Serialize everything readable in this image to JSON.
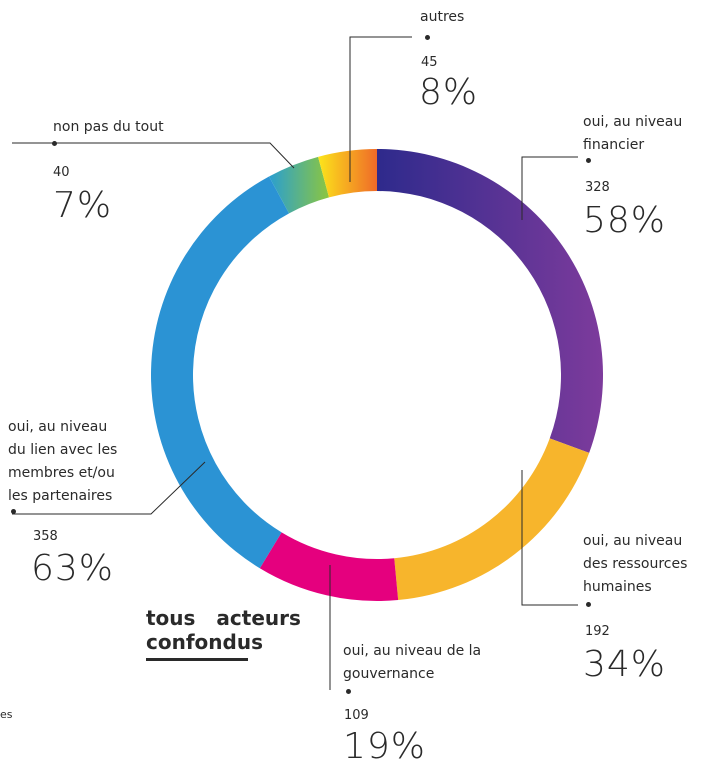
{
  "chart_data": {
    "type": "donut",
    "segments": [
      {
        "label": "oui, au niveau financier",
        "count": "328",
        "percent": "58%",
        "value": 328,
        "color_start": "#2e2a8c",
        "color_end": "#7d3b9c"
      },
      {
        "label": "oui, au niveau des ressources humaines",
        "count": "192",
        "percent": "34%",
        "value": 192,
        "color_start": "#f7b52c",
        "color_end": "#f7b52c"
      },
      {
        "label": "oui, au niveau de la gouvernance",
        "count": "109",
        "percent": "19%",
        "value": 109,
        "color_start": "#e5007e",
        "color_end": "#e5007e"
      },
      {
        "label": "oui, au niveau du lien avec les membres et/ou les partenaires",
        "count": "358",
        "percent": "63%",
        "value": 358,
        "color_start": "#2b93d4",
        "color_end": "#2b93d4"
      },
      {
        "label": "non pas du tout",
        "count": "40",
        "percent": "7%",
        "value": 40,
        "color_start": "#2a9fd0",
        "color_end": "#8cc63f"
      },
      {
        "label": "autres",
        "count": "45",
        "percent": "8%",
        "value": 45,
        "color_start": "#fce51b",
        "color_end": "#ef6a28"
      }
    ],
    "title": "tous acteurs confondus"
  },
  "labels": {
    "financier": {
      "line1": "oui, au niveau",
      "line2": "financier"
    },
    "rh": {
      "line1": "oui, au niveau",
      "line2": "des ressources",
      "line3": "humaines"
    },
    "gouvernance": {
      "line1": "oui, au niveau de la",
      "line2": "gouvernance"
    },
    "lien": {
      "line1": "oui, au niveau",
      "line2": "du lien avec les",
      "line3": "membres et/ou",
      "line4": "les partenaires"
    },
    "non": {
      "line1": "non pas du tout"
    },
    "autres": {
      "line1": "autres"
    }
  },
  "title": {
    "line1": "tous acteurs",
    "line2": "confondus"
  },
  "side_fragment": "es"
}
